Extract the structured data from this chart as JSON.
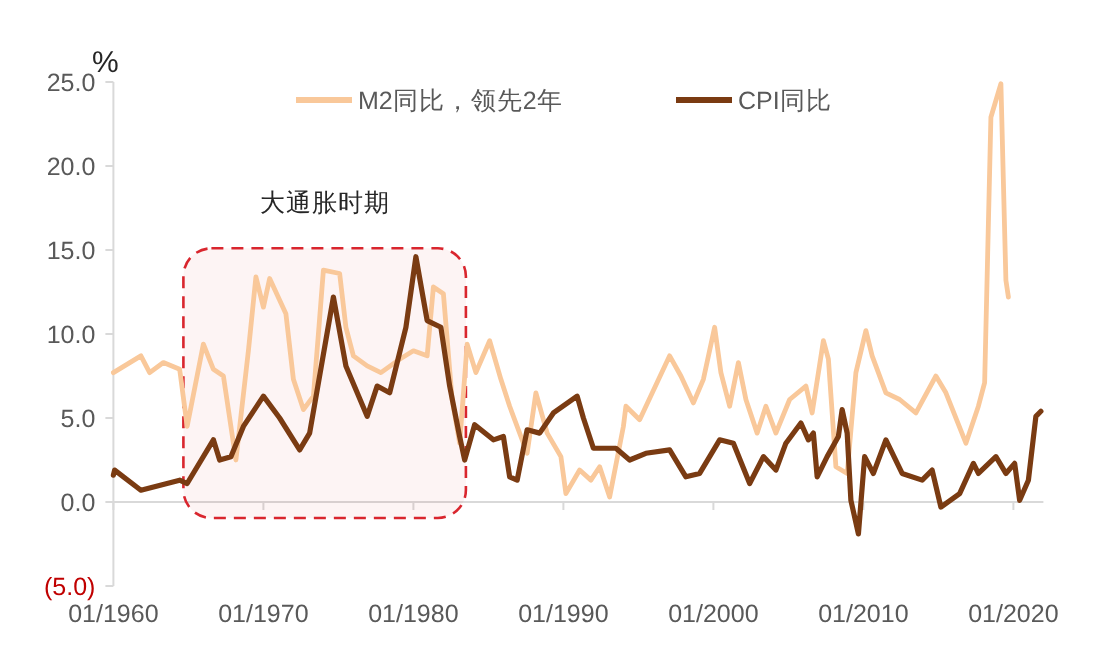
{
  "chart_data": {
    "type": "line",
    "ylabel": "%",
    "legend": "top",
    "grid": false,
    "series": [
      {
        "name": "M2同比，领先2年",
        "color": "#f9c89a",
        "x": [
          "1960-01",
          "1961-11",
          "1962-06",
          "1963-05",
          "1964-06",
          "1964-12",
          "1966-01",
          "1966-09",
          "1967-05",
          "1968-03",
          "1969-01",
          "1969-07",
          "1970-01",
          "1970-06",
          "1971-07",
          "1972-01",
          "1972-09",
          "1973-05",
          "1973-09",
          "1974-01",
          "1975-02",
          "1975-07",
          "1976-01",
          "1976-12",
          "1977-11",
          "1979-02",
          "1980-01",
          "1980-12",
          "1981-05",
          "1982-01",
          "1982-08",
          "1983-02",
          "1983-08",
          "1984-03",
          "1985-02",
          "1985-11",
          "1986-06",
          "1987-08",
          "1988-03",
          "1988-12",
          "1989-11",
          "1990-03",
          "1991-02",
          "1991-11",
          "1992-06",
          "1993-02",
          "1994-01",
          "1994-03",
          "1995-02",
          "1997-02",
          "1997-11",
          "1998-09",
          "1999-05",
          "2000-02",
          "2000-07",
          "2001-02",
          "2001-09",
          "2002-03",
          "2002-12",
          "2003-07",
          "2004-03",
          "2005-02",
          "2006-03",
          "2006-08",
          "2007-05",
          "2007-09",
          "2008-03",
          "2008-12",
          "2009-07",
          "2010-03",
          "2010-08",
          "2011-07",
          "2012-06",
          "2013-07",
          "2014-11",
          "2015-07",
          "2016-11",
          "2017-09",
          "2018-02",
          "2018-07",
          "2019-03",
          "2019-07",
          "2019-09"
        ],
        "values": [
          7.7,
          8.7,
          7.7,
          8.3,
          7.9,
          4.5,
          9.4,
          7.9,
          7.5,
          2.5,
          9.0,
          13.4,
          11.6,
          13.3,
          11.2,
          7.3,
          5.5,
          6.3,
          10.0,
          13.8,
          13.6,
          10.4,
          8.7,
          8.1,
          7.7,
          8.5,
          9.0,
          8.7,
          12.8,
          12.4,
          6.1,
          3.5,
          9.4,
          7.7,
          9.6,
          7.3,
          5.7,
          2.9,
          6.5,
          4.1,
          2.7,
          0.5,
          1.9,
          1.3,
          2.1,
          0.3,
          4.5,
          5.7,
          4.9,
          8.7,
          7.5,
          5.9,
          7.3,
          10.4,
          7.7,
          5.7,
          8.3,
          6.1,
          4.1,
          5.7,
          4.1,
          6.1,
          6.9,
          5.3,
          9.6,
          8.5,
          2.1,
          1.7,
          7.7,
          10.2,
          8.7,
          6.5,
          6.1,
          5.3,
          7.5,
          6.5,
          3.5,
          5.7,
          7.1,
          22.9,
          24.9,
          13.2,
          12.2
        ]
      },
      {
        "name": "CPI同比",
        "color": "#7a3b12",
        "x": [
          "1960-01",
          "1960-02",
          "1961-11",
          "1964-06",
          "1964-12",
          "1966-09",
          "1967-02",
          "1967-11",
          "1968-09",
          "1970-01",
          "1971-02",
          "1972-06",
          "1973-02",
          "1974-09",
          "1975-07",
          "1976-12",
          "1977-08",
          "1978-06",
          "1979-07",
          "1980-03",
          "1980-12",
          "1981-11",
          "1982-06",
          "1983-02",
          "1983-06",
          "1984-02",
          "1985-05",
          "1986-01",
          "1986-06",
          "1986-12",
          "1987-08",
          "1988-06",
          "1989-05",
          "1990-12",
          "1991-05",
          "1992-01",
          "1993-07",
          "1994-06",
          "1995-07",
          "1997-02",
          "1998-03",
          "1999-02",
          "2000-06",
          "2001-05",
          "2002-06",
          "2003-05",
          "2004-03",
          "2004-11",
          "2005-11",
          "2006-05",
          "2006-09",
          "2006-12",
          "2007-08",
          "2008-05",
          "2008-08",
          "2008-12",
          "2009-03",
          "2009-09",
          "2010-02",
          "2010-09",
          "2011-07",
          "2012-08",
          "2013-12",
          "2014-08",
          "2015-03",
          "2016-06",
          "2017-05",
          "2017-09",
          "2018-11",
          "2019-07",
          "2020-02",
          "2020-06",
          "2021-01",
          "2021-07",
          "2021-11"
        ],
        "values": [
          1.6,
          1.9,
          0.7,
          1.3,
          1.1,
          3.7,
          2.5,
          2.7,
          4.5,
          6.3,
          5.0,
          3.1,
          4.1,
          12.2,
          8.1,
          5.1,
          6.9,
          6.5,
          10.4,
          14.6,
          10.8,
          10.4,
          6.9,
          3.9,
          2.5,
          4.6,
          3.7,
          3.9,
          1.5,
          1.3,
          4.3,
          4.1,
          5.3,
          6.3,
          5.0,
          3.2,
          3.2,
          2.5,
          2.9,
          3.1,
          1.5,
          1.7,
          3.7,
          3.5,
          1.1,
          2.7,
          1.9,
          3.5,
          4.7,
          3.7,
          4.1,
          1.5,
          2.7,
          3.9,
          5.5,
          4.1,
          0.1,
          -1.9,
          2.7,
          1.7,
          3.7,
          1.7,
          1.3,
          1.9,
          -0.3,
          0.5,
          2.3,
          1.7,
          2.7,
          1.7,
          2.3,
          0.1,
          1.3,
          5.1,
          5.4
        ]
      }
    ],
    "xlim": [
      "1960-01",
      "2022-01"
    ],
    "xticks": [
      {
        "value": "1960-01",
        "label": "01/1960"
      },
      {
        "value": "1970-01",
        "label": "01/1970"
      },
      {
        "value": "1980-01",
        "label": "01/1980"
      },
      {
        "value": "1990-01",
        "label": "01/1990"
      },
      {
        "value": "2000-01",
        "label": "01/2000"
      },
      {
        "value": "2010-01",
        "label": "01/2010"
      },
      {
        "value": "2020-01",
        "label": "01/2020"
      }
    ],
    "ylim": [
      -5,
      25
    ],
    "yticks": [
      {
        "value": 25,
        "label": "25.0"
      },
      {
        "value": 20,
        "label": "20.0"
      },
      {
        "value": 15,
        "label": "15.0"
      },
      {
        "value": 10,
        "label": "10.0"
      },
      {
        "value": 5,
        "label": "5.0"
      },
      {
        "value": 0,
        "label": "0.0"
      },
      {
        "value": -5,
        "label": "(5.0)"
      }
    ],
    "ref_lines": [
      {
        "axis": "y",
        "value": 0,
        "color": "#d9d9d9"
      }
    ],
    "bands": [
      {
        "axis": "x",
        "from": "1964-09",
        "to": "1983-07",
        "label": "大通胀时期",
        "color": "#d9262e"
      }
    ]
  }
}
